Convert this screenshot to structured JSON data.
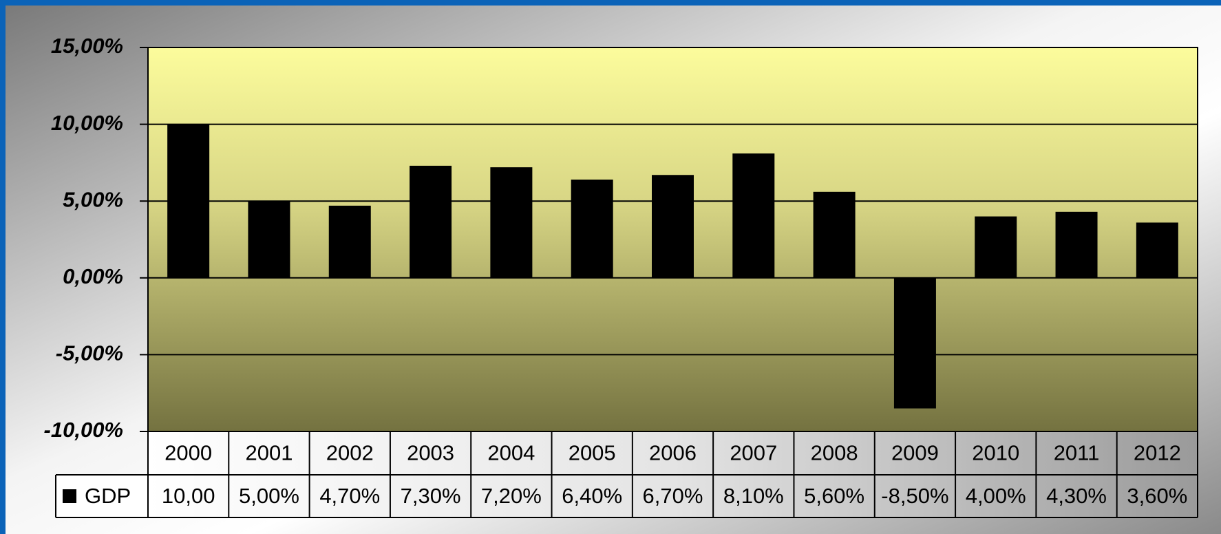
{
  "chart_data": {
    "type": "bar",
    "categories": [
      "2000",
      "2001",
      "2002",
      "2003",
      "2004",
      "2005",
      "2006",
      "2007",
      "2008",
      "2009",
      "2010",
      "2011",
      "2012"
    ],
    "series": [
      {
        "name": "GDP",
        "color": "#000000",
        "values": [
          10,
          5,
          4.7,
          7.3,
          7.2,
          6.4,
          6.7,
          8.1,
          5.6,
          -8.5,
          4,
          4.3,
          3.6
        ],
        "value_labels": [
          "10,00",
          "5,00%",
          "4,70%",
          "7,30%",
          "7,20%",
          "6,40%",
          "6,70%",
          "8,10%",
          "5,60%",
          "-8,50%",
          "4,00%",
          "4,30%",
          "3,60%"
        ]
      }
    ],
    "ylim": [
      -10,
      15
    ],
    "yticks": [
      {
        "value": -10,
        "label": "-10,00%"
      },
      {
        "value": -5,
        "label": "-5,00%"
      },
      {
        "value": 0,
        "label": "0,00%"
      },
      {
        "value": 5,
        "label": "5,00%"
      },
      {
        "value": 10,
        "label": "10,00%"
      },
      {
        "value": 15,
        "label": "15,00%"
      }
    ],
    "grid": true,
    "data_table": true
  }
}
